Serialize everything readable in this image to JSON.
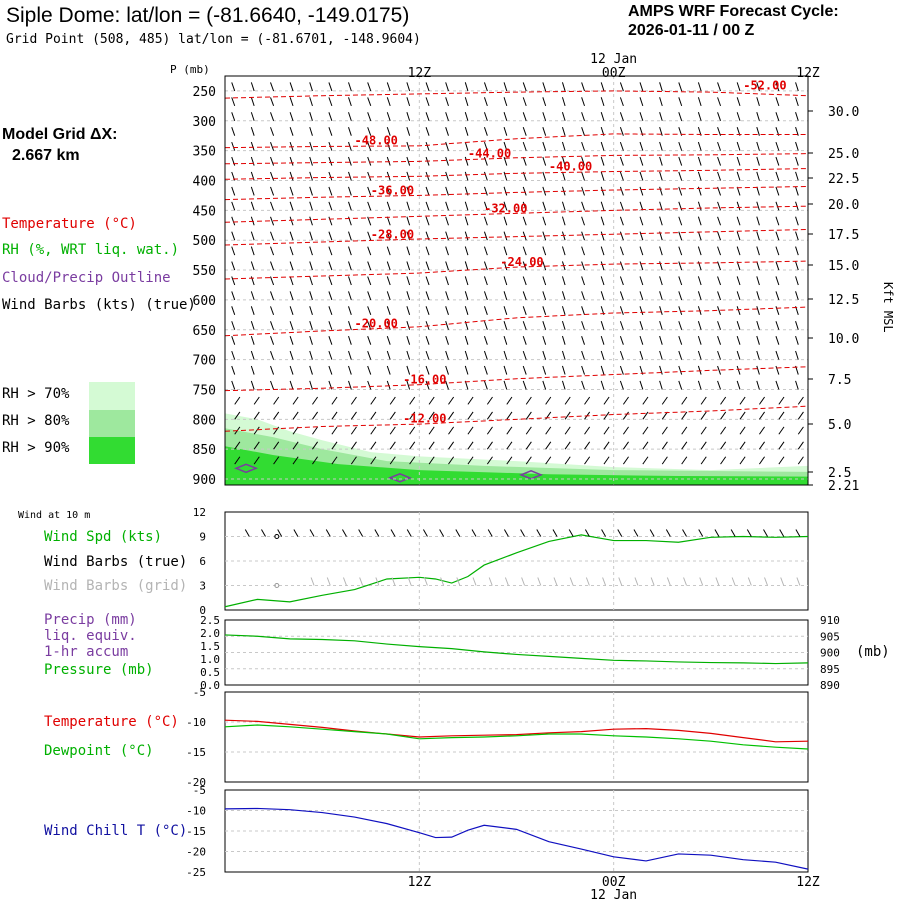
{
  "header": {
    "title": "Siple Dome:  lat/lon = (-81.6640, -149.0175)",
    "grid_point": "Grid Point (508, 485) lat/lon = (-81.6701, -148.9604)",
    "cycle_line1": "AMPS WRF Forecast Cycle:",
    "cycle_line2": "2026-01-11 / 00  Z"
  },
  "model_grid": {
    "line1": "Model Grid ΔX:",
    "line2": "2.667 km"
  },
  "legend": {
    "temperature": "Temperature (°C)",
    "rh": "RH (%, WRT liq. wat.)",
    "cloud": "Cloud/Precip Outline",
    "wind_barbs": "Wind Barbs (kts) (true)",
    "rh70": "RH > 70%",
    "rh80": "RH > 80%",
    "rh90": "RH > 90%",
    "rh_colors": [
      "#d4fad4",
      "#9ee89e",
      "#32dc32"
    ]
  },
  "time_axis": {
    "top_labels": [
      "12Z",
      "00Z",
      "12Z"
    ],
    "bottom_labels": [
      "12Z",
      "00Z",
      "12Z"
    ],
    "date_label": "12 Jan"
  },
  "chart_data": [
    {
      "type": "line",
      "id": "cross-section",
      "y_axis_label": "P (mb)",
      "right_axis_label": "Kft MSL",
      "pressure_levels": [
        250,
        300,
        350,
        400,
        450,
        500,
        550,
        600,
        650,
        700,
        750,
        800,
        850,
        900
      ],
      "height_ticks": [
        "30.0",
        "25.0",
        "22.5",
        "20.0",
        "17.5",
        "15.0",
        "12.5",
        "10.0",
        "7.5",
        "5.0",
        "2.5",
        "2.21"
      ],
      "temperature_labels": [
        "-52.00",
        "-48.00",
        "-44.00",
        "-40.00",
        "-36.00",
        "-32.00",
        "-28.00",
        "-24.00",
        "-20.00",
        "-16.00",
        "-12.00"
      ]
    },
    {
      "type": "line",
      "id": "wind-10m",
      "title": "Wind at 10 m",
      "series_label": "Wind Spd (kts)",
      "barb_true_label": "Wind Barbs (true)",
      "barb_grid_label": "Wind Barbs (grid)",
      "y_ticks": [
        "12",
        "9",
        "6",
        "3",
        "0"
      ],
      "ylim": [
        0,
        12
      ],
      "x": [
        0,
        2,
        4,
        6,
        8,
        10,
        12,
        13,
        14,
        15,
        16,
        18,
        20,
        22,
        24,
        26,
        28,
        30,
        32,
        34,
        36
      ],
      "values": [
        0.4,
        1.3,
        1.0,
        1.8,
        2.5,
        3.8,
        4.0,
        3.8,
        3.3,
        4.1,
        5.5,
        7.0,
        8.4,
        9.2,
        8.5,
        8.5,
        8.3,
        8.9,
        9.0,
        8.9,
        9.0
      ]
    },
    {
      "type": "line",
      "id": "precip-pressure",
      "precip_label": "Precip (mm)",
      "precip_sub1": "liq. equiv.",
      "precip_sub2": "1-hr accum",
      "pressure_label": "Pressure (mb)",
      "precip_ticks": [
        "2.5",
        "2.0",
        "1.5",
        "1.0",
        "0.5",
        "0.0"
      ],
      "pressure_ticks": [
        "910",
        "905",
        "900",
        "895",
        "890"
      ],
      "pressure_unit": "(mb)",
      "ylim": [
        890,
        910
      ],
      "x": [
        0,
        2,
        4,
        6,
        8,
        10,
        12,
        14,
        16,
        18,
        20,
        22,
        24,
        26,
        28,
        30,
        32,
        34,
        36
      ],
      "values": [
        905.4,
        905.0,
        904.2,
        904.0,
        903.6,
        902.6,
        901.8,
        901.2,
        900.2,
        899.4,
        898.8,
        898.2,
        897.6,
        897.4,
        897.1,
        896.9,
        896.8,
        896.6,
        896.8
      ]
    },
    {
      "type": "line",
      "id": "temp-dew",
      "temp_label": "Temperature (°C)",
      "dew_label": "Dewpoint (°C)",
      "y_ticks": [
        "-5",
        "-10",
        "-15",
        "-20"
      ],
      "ylim": [
        -20,
        -5
      ],
      "x": [
        0,
        2,
        4,
        6,
        8,
        10,
        12,
        14,
        16,
        18,
        20,
        22,
        24,
        26,
        28,
        30,
        32,
        34,
        36
      ],
      "series": [
        {
          "name": "Temperature",
          "color": "#e00000",
          "values": [
            -9.7,
            -9.9,
            -10.4,
            -10.9,
            -11.5,
            -12.0,
            -12.5,
            -12.3,
            -12.2,
            -12.1,
            -11.8,
            -11.6,
            -11.2,
            -11.1,
            -11.4,
            -11.9,
            -12.6,
            -13.3,
            -13.2
          ]
        },
        {
          "name": "Dewpoint",
          "color": "#00c000",
          "values": [
            -10.8,
            -10.5,
            -10.8,
            -11.2,
            -11.6,
            -12.0,
            -12.8,
            -12.6,
            -12.5,
            -12.3,
            -12.0,
            -12.0,
            -12.3,
            -12.5,
            -12.8,
            -13.2,
            -13.8,
            -14.2,
            -14.5
          ]
        }
      ]
    },
    {
      "type": "line",
      "id": "wind-chill",
      "label": "Wind Chill T (°C)",
      "y_ticks": [
        "-5",
        "-10",
        "-15",
        "-20",
        "-25"
      ],
      "ylim": [
        -25,
        -5
      ],
      "x": [
        0,
        2,
        4,
        6,
        8,
        10,
        12,
        13,
        14,
        15,
        16,
        18,
        20,
        22,
        24,
        26,
        28,
        30,
        32,
        34,
        36
      ],
      "values": [
        -9.6,
        -9.5,
        -9.8,
        -10.5,
        -11.6,
        -13.2,
        -15.4,
        -16.6,
        -16.5,
        -14.8,
        -13.6,
        -14.6,
        -17.6,
        -19.4,
        -21.3,
        -22.3,
        -20.6,
        -20.9,
        -22.0,
        -22.6,
        -24.3
      ]
    }
  ]
}
